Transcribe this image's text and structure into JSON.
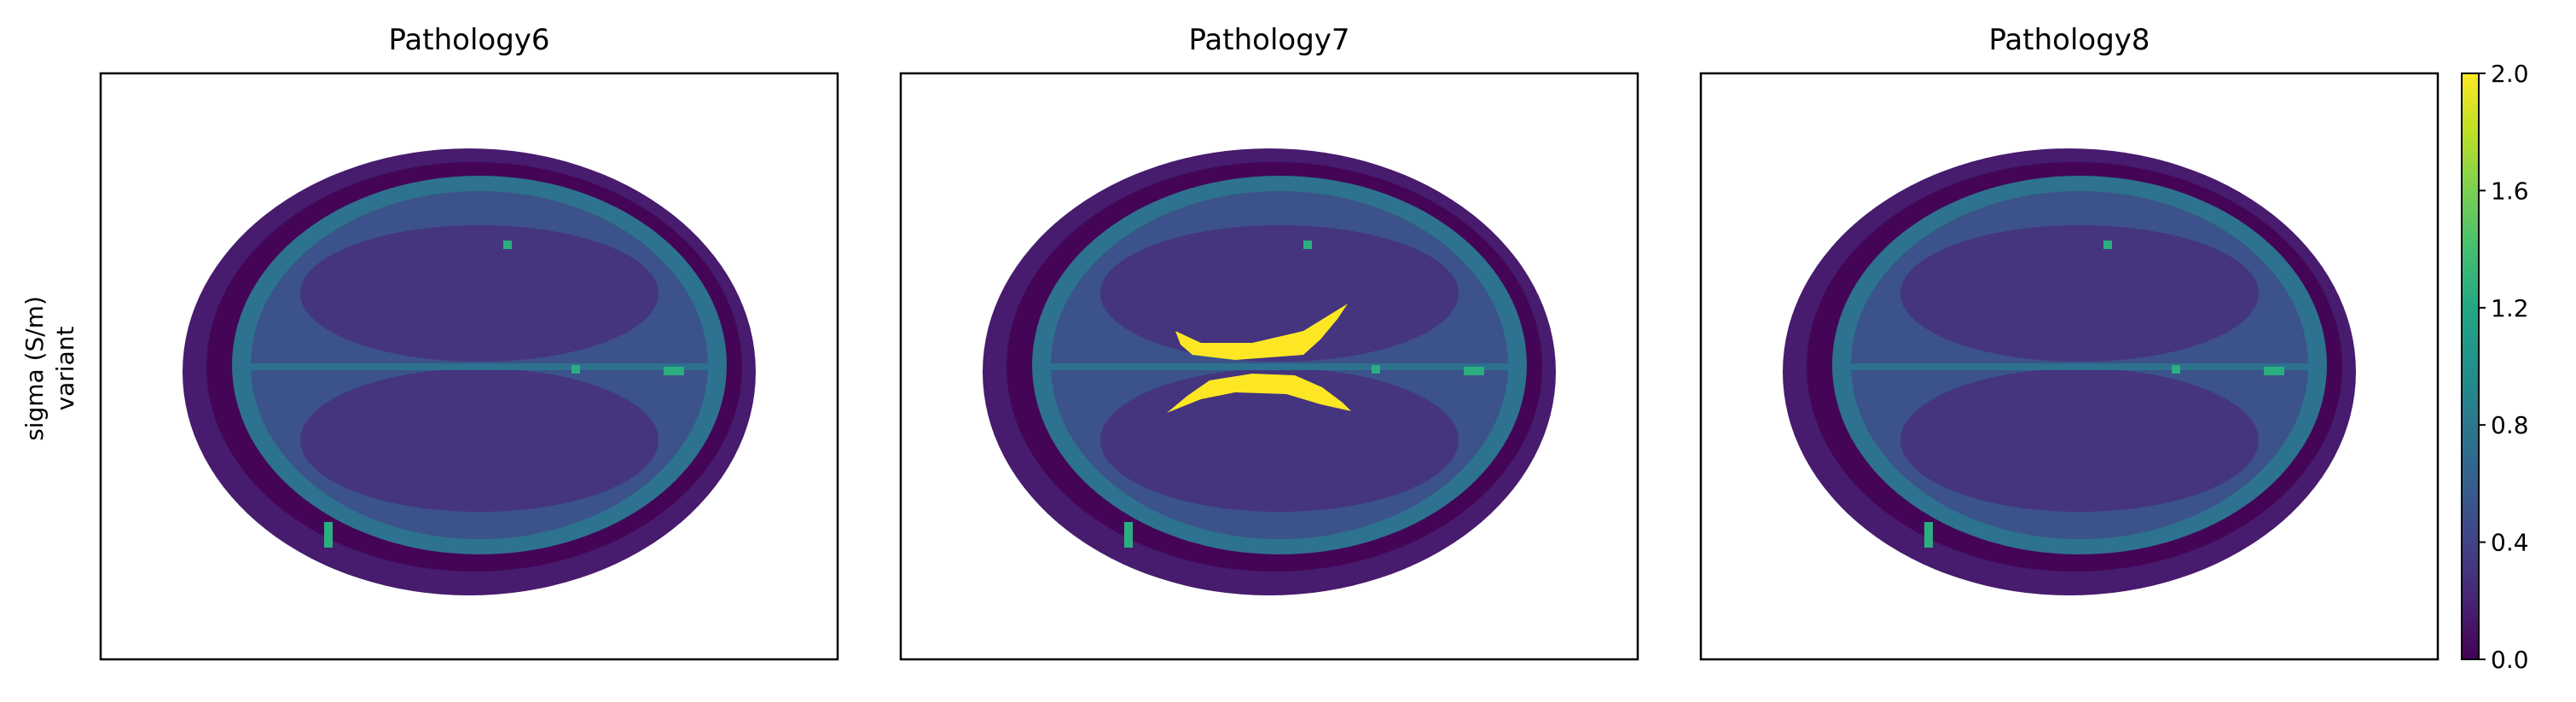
{
  "figure": {
    "row_label_line1": "sigma (S/m)",
    "row_label_line2": "variant"
  },
  "chart_data": {
    "type": "heatmap",
    "colormap": "viridis",
    "panels": [
      {
        "title": "Pathology6",
        "lesion": false
      },
      {
        "title": "Pathology7",
        "lesion": true
      },
      {
        "title": "Pathology8",
        "lesion": false
      }
    ],
    "colorbar": {
      "range": [
        0.0,
        2.0
      ],
      "ticks": [
        "0.0",
        "0.4",
        "0.8",
        "1.2",
        "1.6",
        "2.0"
      ]
    },
    "tissue_values": {
      "background": 0.0,
      "scalp": 0.15,
      "skull": 0.02,
      "csf_rim": 0.75,
      "gray_matter": 0.5,
      "white_matter": 0.3,
      "vessels": 1.25,
      "lesion": 2.0
    },
    "grid": false,
    "axes_ticks": false
  }
}
